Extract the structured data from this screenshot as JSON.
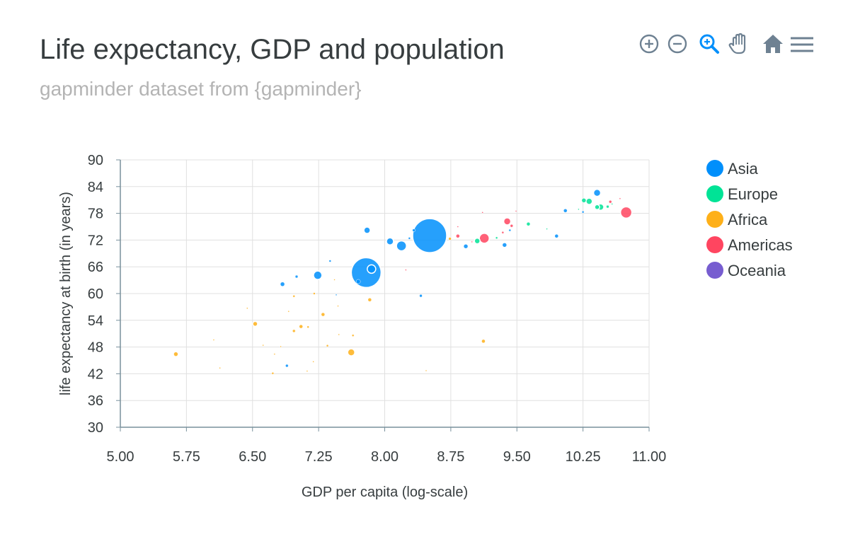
{
  "chart_data": {
    "type": "scatter",
    "title": "Life expectancy, GDP and population",
    "subtitle": "gapminder dataset from {gapminder}",
    "xlabel": "GDP per capita (log-scale)",
    "ylabel": "life expectancy at birth (in years)",
    "xlim": [
      5.0,
      11.0
    ],
    "ylim": [
      30,
      90
    ],
    "x_ticks": [
      "5.00",
      "5.75",
      "6.50",
      "7.25",
      "8.00",
      "8.75",
      "9.50",
      "10.25",
      "11.00"
    ],
    "y_ticks": [
      "30",
      "36",
      "42",
      "48",
      "54",
      "60",
      "66",
      "72",
      "78",
      "84",
      "90"
    ],
    "grid": true,
    "legend_position": "right",
    "series": [
      {
        "name": "Asia",
        "color": "#008FFB",
        "points": [
          {
            "x": 8.51,
            "y": 73.0,
            "size": 48
          },
          {
            "x": 7.79,
            "y": 64.7,
            "size": 42
          },
          {
            "x": 8.19,
            "y": 70.7,
            "size": 14
          },
          {
            "x": 7.24,
            "y": 64.1,
            "size": 12
          },
          {
            "x": 7.85,
            "y": 65.5,
            "size": 12
          },
          {
            "x": 8.06,
            "y": 71.7,
            "size": 10
          },
          {
            "x": 7.8,
            "y": 74.2,
            "size": 9
          },
          {
            "x": 10.41,
            "y": 82.6,
            "size": 10
          },
          {
            "x": 8.92,
            "y": 70.6,
            "size": 7
          },
          {
            "x": 9.36,
            "y": 70.9,
            "size": 7
          },
          {
            "x": 7.7,
            "y": 62.7,
            "size": 6
          },
          {
            "x": 6.84,
            "y": 62.1,
            "size": 6
          },
          {
            "x": 10.05,
            "y": 78.6,
            "size": 5
          },
          {
            "x": 9.95,
            "y": 72.9,
            "size": 5
          },
          {
            "x": 8.41,
            "y": 59.5,
            "size": 4
          },
          {
            "x": 8.33,
            "y": 74.2,
            "size": 4
          },
          {
            "x": 7.0,
            "y": 63.8,
            "size": 4
          },
          {
            "x": 6.89,
            "y": 43.8,
            "size": 4
          },
          {
            "x": 8.28,
            "y": 72.4,
            "size": 3
          },
          {
            "x": 9.42,
            "y": 74.2,
            "size": 3
          },
          {
            "x": 7.38,
            "y": 67.3,
            "size": 3
          },
          {
            "x": 10.25,
            "y": 78.3,
            "size": 3
          },
          {
            "x": 7.45,
            "y": 59.7,
            "size": 2
          }
        ]
      },
      {
        "name": "Europe",
        "color": "#00E396",
        "points": [
          {
            "x": 10.32,
            "y": 80.7,
            "size": 9
          },
          {
            "x": 10.45,
            "y": 79.4,
            "size": 9
          },
          {
            "x": 10.41,
            "y": 79.4,
            "size": 7
          },
          {
            "x": 10.26,
            "y": 80.9,
            "size": 6
          },
          {
            "x": 9.05,
            "y": 71.8,
            "size": 8
          },
          {
            "x": 9.63,
            "y": 75.6,
            "size": 5
          },
          {
            "x": 10.53,
            "y": 79.5,
            "size": 4
          },
          {
            "x": 9.27,
            "y": 72.5,
            "size": 3
          },
          {
            "x": 9.84,
            "y": 74.5,
            "size": 2
          },
          {
            "x": 10.2,
            "y": 78.9,
            "size": 2
          },
          {
            "x": 10.58,
            "y": 80.1,
            "size": 2
          }
        ]
      },
      {
        "name": "Africa",
        "color": "#FEB019",
        "points": [
          {
            "x": 7.62,
            "y": 46.8,
            "size": 10
          },
          {
            "x": 5.63,
            "y": 46.4,
            "size": 7
          },
          {
            "x": 6.53,
            "y": 53.2,
            "size": 7
          },
          {
            "x": 7.05,
            "y": 52.6,
            "size": 5
          },
          {
            "x": 7.83,
            "y": 58.6,
            "size": 5
          },
          {
            "x": 9.12,
            "y": 49.3,
            "size": 5
          },
          {
            "x": 7.3,
            "y": 55.3,
            "size": 5
          },
          {
            "x": 6.97,
            "y": 51.6,
            "size": 4
          },
          {
            "x": 8.74,
            "y": 72.3,
            "size": 4
          },
          {
            "x": 7.13,
            "y": 52.5,
            "size": 3
          },
          {
            "x": 7.64,
            "y": 50.6,
            "size": 3
          },
          {
            "x": 7.35,
            "y": 48.3,
            "size": 3
          },
          {
            "x": 6.97,
            "y": 59.4,
            "size": 3
          },
          {
            "x": 6.73,
            "y": 42.1,
            "size": 3
          },
          {
            "x": 7.2,
            "y": 60.0,
            "size": 3
          },
          {
            "x": 6.44,
            "y": 56.7,
            "size": 2
          },
          {
            "x": 6.62,
            "y": 48.4,
            "size": 2
          },
          {
            "x": 6.06,
            "y": 49.6,
            "size": 2
          },
          {
            "x": 6.13,
            "y": 43.3,
            "size": 2
          },
          {
            "x": 6.82,
            "y": 48.1,
            "size": 2
          },
          {
            "x": 6.91,
            "y": 56.0,
            "size": 2
          },
          {
            "x": 7.12,
            "y": 42.6,
            "size": 2
          },
          {
            "x": 8.47,
            "y": 42.7,
            "size": 2
          },
          {
            "x": 7.48,
            "y": 50.8,
            "size": 2
          },
          {
            "x": 7.19,
            "y": 44.7,
            "size": 2
          },
          {
            "x": 7.43,
            "y": 63.1,
            "size": 2
          },
          {
            "x": 6.75,
            "y": 46.4,
            "size": 1
          },
          {
            "x": 7.47,
            "y": 57.2,
            "size": 1
          }
        ]
      },
      {
        "name": "Americas",
        "color": "#FF4560",
        "points": [
          {
            "x": 10.74,
            "y": 78.2,
            "size": 16
          },
          {
            "x": 9.13,
            "y": 72.4,
            "size": 14
          },
          {
            "x": 9.39,
            "y": 76.2,
            "size": 10
          },
          {
            "x": 8.83,
            "y": 72.9,
            "size": 5
          },
          {
            "x": 9.44,
            "y": 75.2,
            "size": 4
          },
          {
            "x": 9.34,
            "y": 73.7,
            "size": 3
          },
          {
            "x": 10.56,
            "y": 80.6,
            "size": 4
          },
          {
            "x": 8.83,
            "y": 75.0,
            "size": 2
          },
          {
            "x": 9.49,
            "y": 78.5,
            "size": 2
          },
          {
            "x": 9.11,
            "y": 78.2,
            "size": 2
          },
          {
            "x": 8.24,
            "y": 65.3,
            "size": 2
          },
          {
            "x": 8.99,
            "y": 71.6,
            "size": 2
          },
          {
            "x": 10.67,
            "y": 81.3,
            "size": 2
          }
        ]
      },
      {
        "name": "Oceania",
        "color": "#775DD0",
        "points": []
      }
    ]
  },
  "toolbar": {
    "zoom_in_icon": "plus-circle-icon",
    "zoom_out_icon": "minus-circle-icon",
    "selection_zoom_icon": "magnifier-icon",
    "pan_icon": "hand-icon",
    "reset_icon": "home-icon",
    "menu_icon": "hamburger-menu-icon",
    "active_color": "#008FFB",
    "idle_color": "#6E8192"
  }
}
